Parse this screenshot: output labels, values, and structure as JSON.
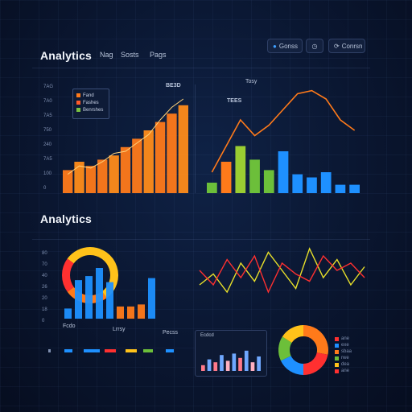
{
  "header": {
    "title": "Analytics",
    "tabs": [
      "Nag",
      "Sosts",
      "Pags"
    ],
    "right_buttons": [
      {
        "label": "Gonss",
        "icon": "droplet-icon"
      },
      {
        "label": "",
        "icon": "clock-icon"
      },
      {
        "label": "Conrsn",
        "icon": "refresh-icon"
      }
    ]
  },
  "section2": {
    "title": "Analytics"
  },
  "top_left": {
    "yticks": [
      "7AG",
      "7A0",
      "7A5",
      "750",
      "240",
      "7A5",
      "100",
      "0"
    ],
    "callout": "BE3D",
    "legend": [
      {
        "label": "Fand",
        "color": "#ff7a1a"
      },
      {
        "label": "Fashes",
        "color": "#ff5a2a"
      },
      {
        "label": "Benrshes",
        "color": "#7ac142"
      }
    ]
  },
  "top_right": {
    "label_top": "Tosy",
    "label_mid": "TEES"
  },
  "bottom_left": {
    "yticks": [
      "80",
      "70",
      "40",
      "26",
      "20",
      "18",
      "0"
    ],
    "xlabels": [
      "Fcdo",
      "Lrrsy",
      "Pecss"
    ]
  },
  "mini_card": {
    "title": "Ecdcd"
  },
  "legend_right": [
    "ane",
    "exe",
    "sbaa",
    "rwe",
    "dea",
    "ane"
  ],
  "colors": {
    "orange": "#ff7a1a",
    "blue": "#1e90ff",
    "yellow": "#ffc21a",
    "red": "#ff3030",
    "green": "#6cbf3a"
  },
  "chart_data": [
    {
      "type": "bar",
      "values": [
        22,
        30,
        26,
        32,
        36,
        44,
        52,
        60,
        68,
        76,
        84
      ],
      "trend": [
        18,
        26,
        24,
        30,
        38,
        40,
        48,
        56,
        70,
        82,
        90
      ],
      "ylim": [
        0,
        100
      ]
    },
    {
      "type": "bar",
      "series": [
        {
          "values": [
            10,
            30,
            45,
            32,
            22,
            40,
            18,
            15,
            20,
            8,
            8
          ]
        }
      ],
      "line": [
        20,
        45,
        70,
        55,
        65,
        80,
        95,
        98,
        90,
        70,
        60
      ],
      "ylim": [
        0,
        100
      ]
    },
    {
      "type": "bar",
      "values": [
        10,
        38,
        42,
        50,
        36,
        12,
        12,
        14,
        40
      ],
      "donut": [
        40,
        25,
        20,
        15
      ],
      "ylim": [
        0,
        100
      ]
    },
    {
      "type": "line",
      "series": [
        {
          "values": [
            40,
            55,
            30,
            70,
            45,
            85,
            60,
            35,
            90,
            50,
            75,
            40,
            65
          ]
        },
        {
          "values": [
            60,
            40,
            75,
            50,
            80,
            30,
            70,
            55,
            45,
            80,
            60,
            70,
            50
          ]
        }
      ],
      "ylim": [
        0,
        100
      ]
    },
    {
      "type": "bar",
      "values": [
        20,
        40,
        30,
        55,
        35,
        60,
        45,
        70,
        30,
        50
      ],
      "ylim": [
        0,
        100
      ]
    },
    {
      "type": "pie",
      "values": [
        28,
        22,
        18,
        16,
        16
      ]
    }
  ]
}
